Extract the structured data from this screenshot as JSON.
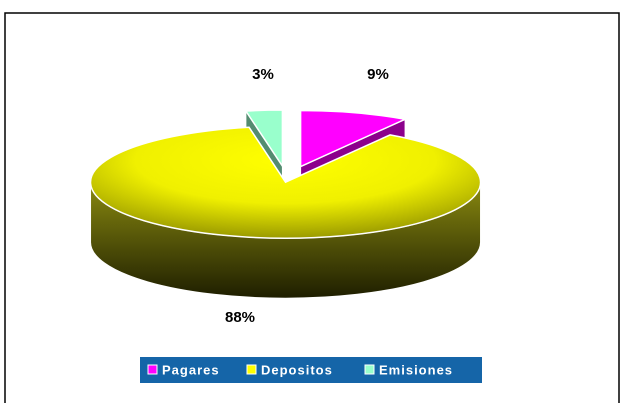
{
  "chart_data": {
    "type": "pie",
    "categories": [
      "Pagares",
      "Depositos",
      "Emisiones"
    ],
    "values": [
      9,
      88,
      3
    ],
    "value_labels": [
      "9%",
      "88%",
      "3%"
    ],
    "colors": [
      "#ff00ff",
      "#ffff00",
      "#99ffcc"
    ],
    "legend": "bottom"
  }
}
